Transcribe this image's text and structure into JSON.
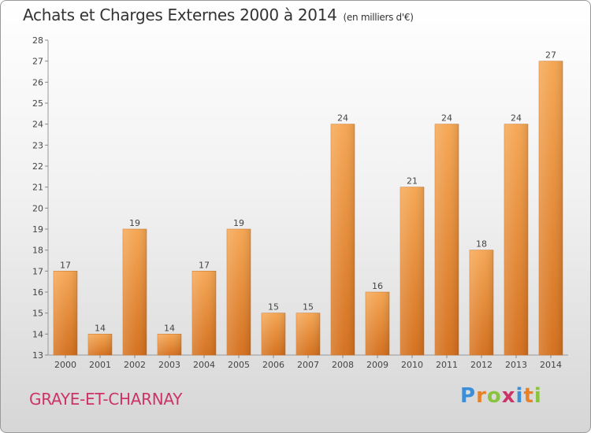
{
  "chart_data": {
    "type": "bar",
    "title": "Achats et Charges Externes 2000 à 2014",
    "subtitle": "(en milliers d'€)",
    "categories": [
      "2000",
      "2001",
      "2002",
      "2003",
      "2004",
      "2005",
      "2006",
      "2007",
      "2008",
      "2009",
      "2010",
      "2011",
      "2012",
      "2013",
      "2014"
    ],
    "values": [
      17,
      14,
      19,
      14,
      17,
      19,
      15,
      15,
      24,
      16,
      21,
      24,
      18,
      24,
      27
    ],
    "ylim": [
      13,
      28
    ],
    "yticks": [
      13,
      14,
      15,
      16,
      17,
      18,
      19,
      20,
      21,
      22,
      23,
      24,
      25,
      26,
      27,
      28
    ],
    "grid": false,
    "bar_color": "#e8822a"
  },
  "footer": {
    "town": "GRAYE-ET-CHARNAY",
    "brand_letters": [
      "P",
      "r",
      "o",
      "x",
      "i",
      "t",
      "i"
    ],
    "brand_colors": [
      "#3a8fd8",
      "#e8822a",
      "#8ac43f",
      "#cc3366",
      "#3a8fd8",
      "#e8822a",
      "#8ac43f"
    ]
  }
}
